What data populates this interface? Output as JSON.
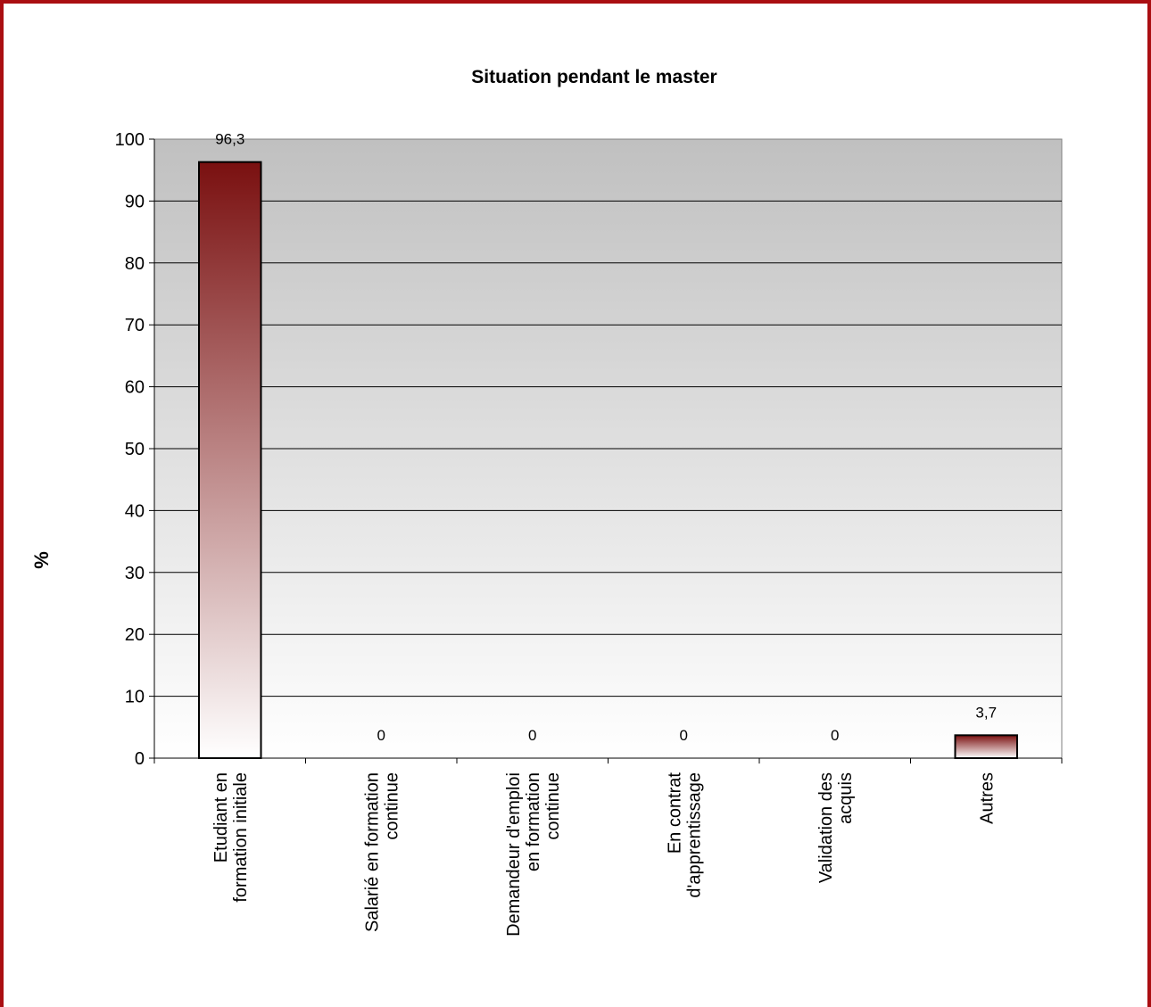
{
  "chart_data": {
    "type": "bar",
    "title": "Situation pendant le master",
    "xlabel": "",
    "ylabel": "%",
    "ylim": [
      0,
      100
    ],
    "yticks": [
      "0",
      "10",
      "20",
      "30",
      "40",
      "50",
      "60",
      "70",
      "80",
      "90",
      "100"
    ],
    "categories": [
      [
        "Etudiant en",
        "formation initiale"
      ],
      [
        "Salarié en formation",
        "continue"
      ],
      [
        "Demandeur d'emploi",
        "en formation",
        "continue"
      ],
      [
        "En contrat",
        "d'apprentissage"
      ],
      [
        "Validation des",
        "acquis"
      ],
      [
        "Autres"
      ]
    ],
    "values": [
      96.3,
      0,
      0,
      0,
      0,
      3.7
    ],
    "data_labels": [
      "96,3",
      "0",
      "0",
      "0",
      "0",
      "3,7"
    ],
    "grid": true,
    "legend": "none",
    "colors": {
      "frame": "#aa0e12",
      "bar_top": "#7a1010",
      "bar_bottom": "#ffffff",
      "plot_top": "#c0c0c0",
      "plot_bottom": "#ffffff"
    }
  }
}
